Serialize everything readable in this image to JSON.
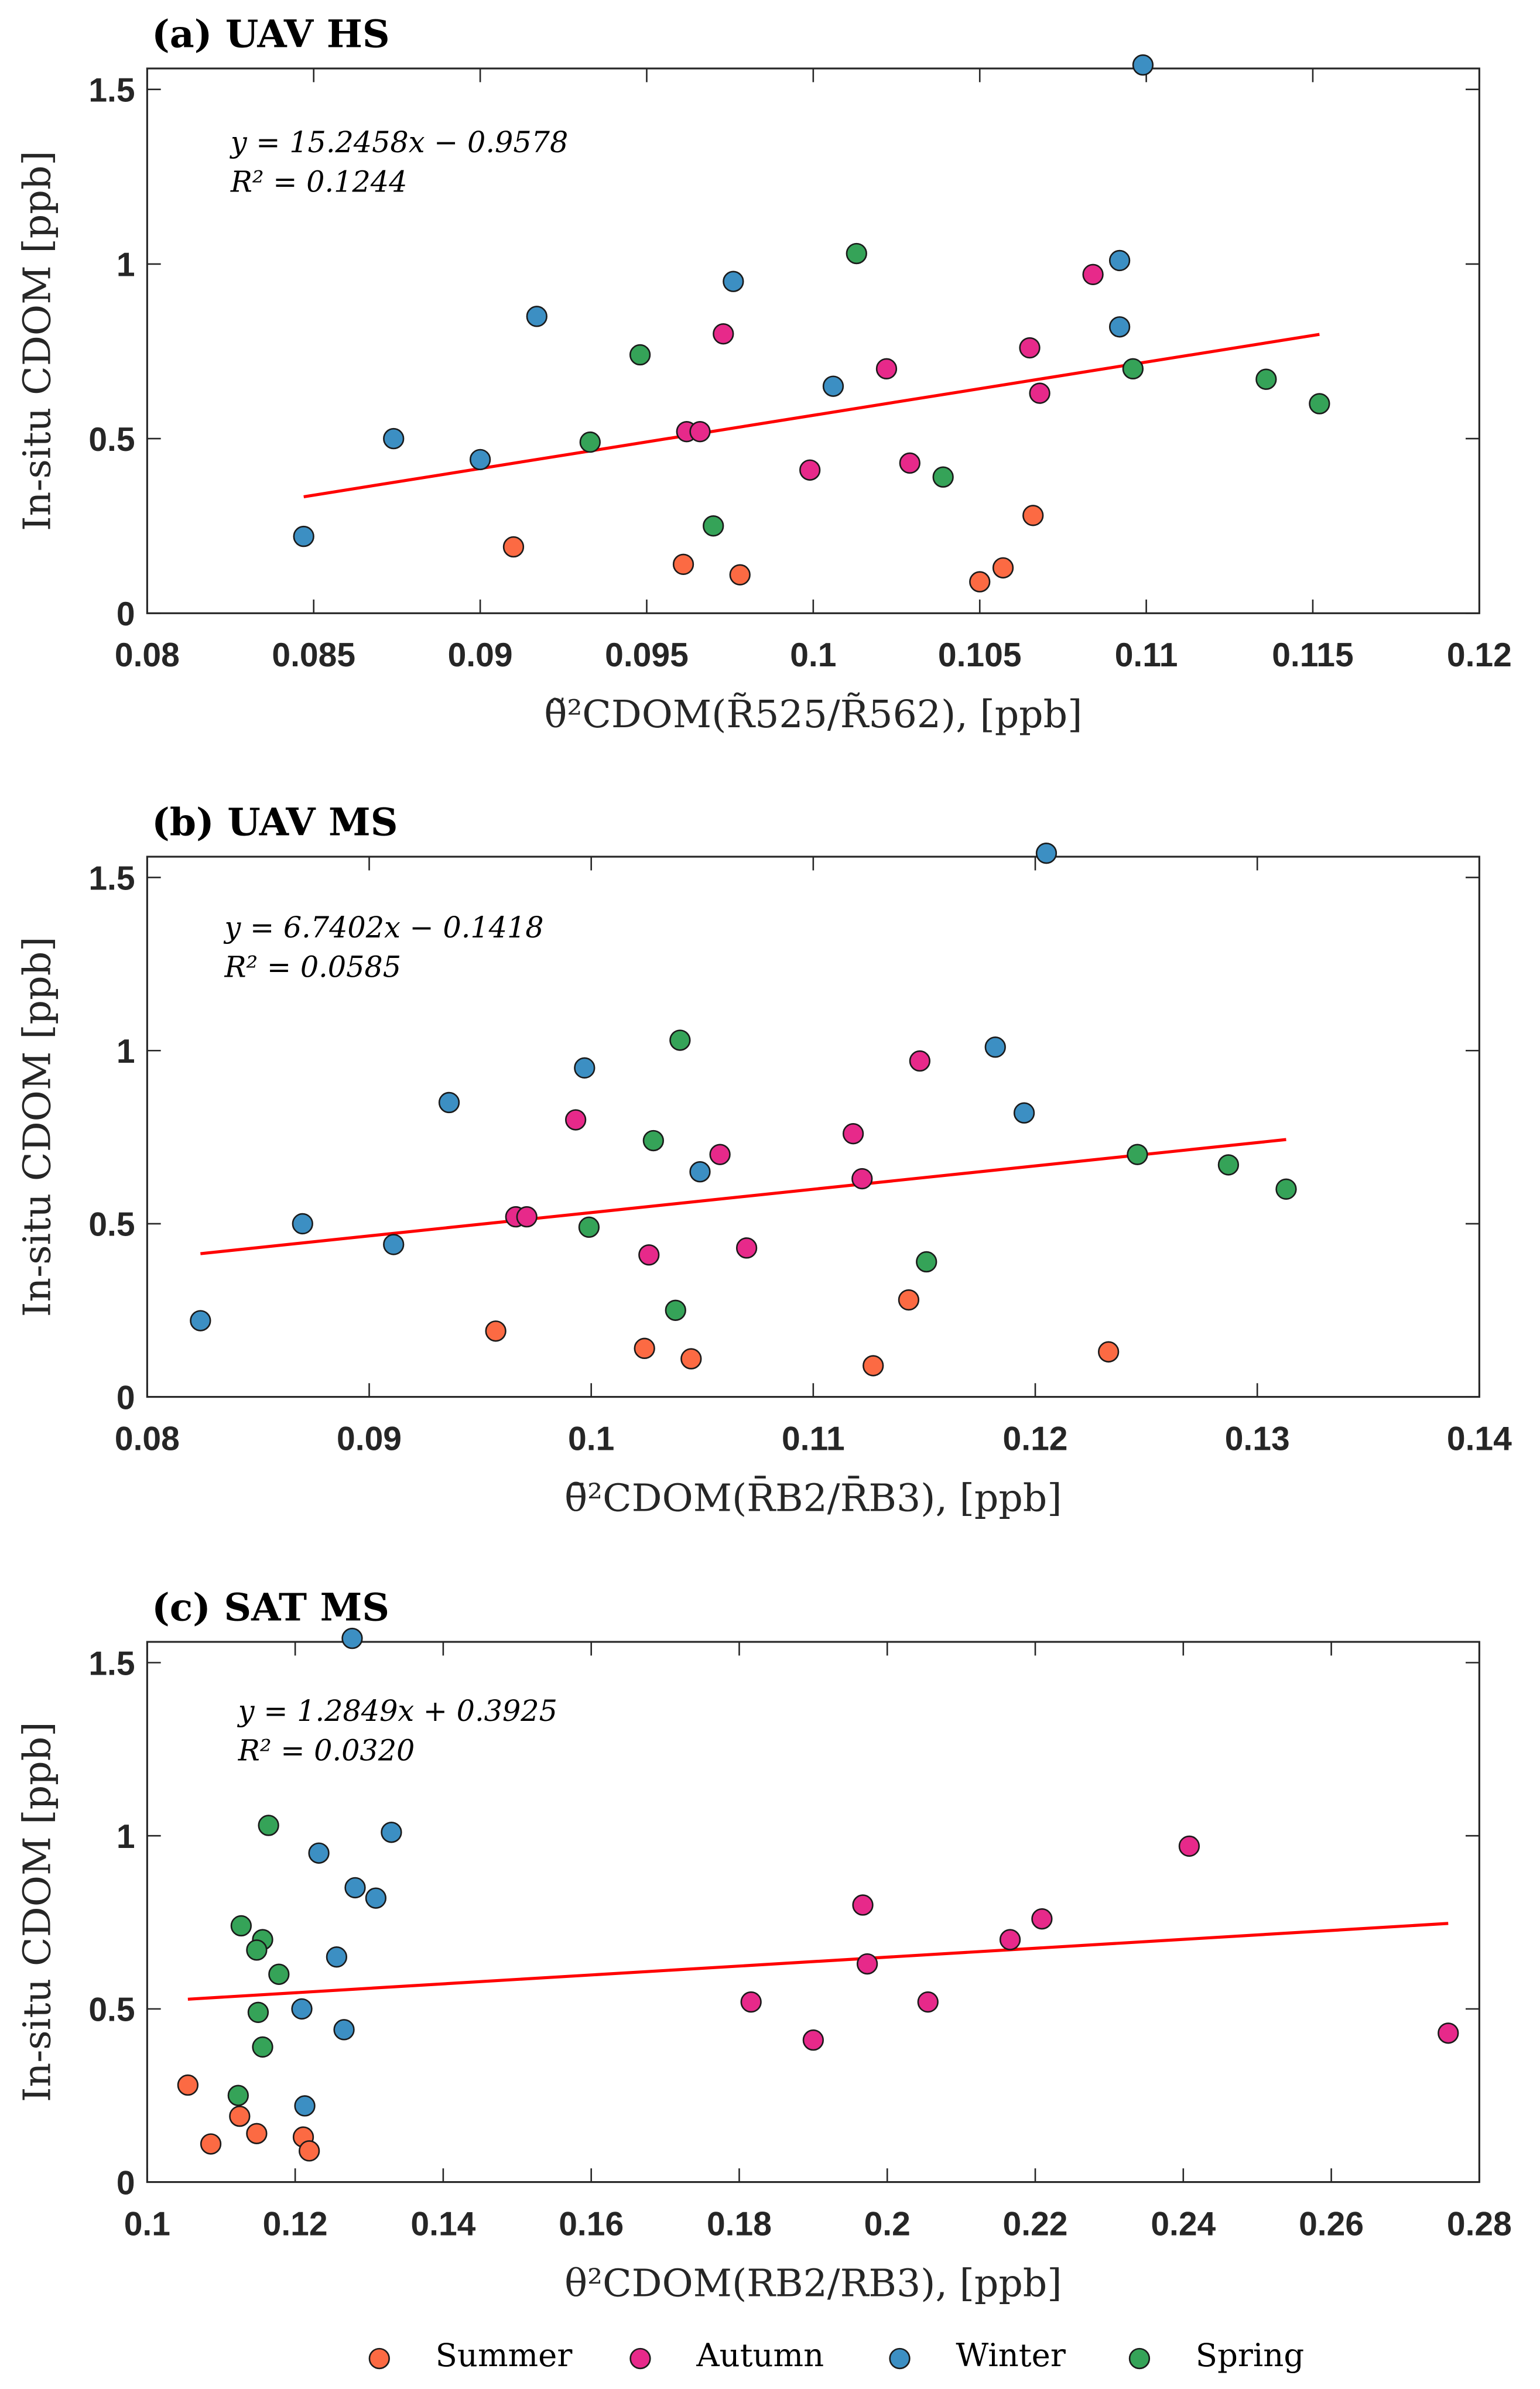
{
  "colors": {
    "Summer": "#fc6a43",
    "Autumn": "#e7298a",
    "Winter": "#3c8fc3",
    "Spring": "#35a358",
    "fit": "#ff0000"
  },
  "legend": [
    "Summer",
    "Autumn",
    "Winter",
    "Spring"
  ],
  "chart_data": [
    {
      "type": "scatter",
      "title": "(a)  UAV HS",
      "xlabel": "θ̃²CDOM(R̃525/R̃562), [ppb]",
      "ylabel": "In-situ CDOM [ppb]",
      "xlim": [
        0.08,
        0.12
      ],
      "ylim": [
        0,
        1.56
      ],
      "xticks": [
        0.08,
        0.085,
        0.09,
        0.095,
        0.1,
        0.105,
        0.11,
        0.115,
        0.12
      ],
      "xtick_labels": [
        "0.08",
        "0.085",
        "0.09",
        "0.095",
        "0.1",
        "0.105",
        "0.11",
        "0.115",
        "0.12"
      ],
      "yticks": [
        0,
        0.5,
        1,
        1.5
      ],
      "ytick_labels": [
        "0",
        "0.5",
        "1",
        "1.5"
      ],
      "equation": "y = 15.2458x − 0.9578",
      "r2": "R² = 0.1244",
      "fit": {
        "slope": 15.2458,
        "intercept": -0.9578,
        "xrange": [
          0.0847,
          0.1152
        ]
      },
      "series": [
        {
          "name": "Summer",
          "x": [
            0.091,
            0.0961,
            0.0978,
            0.105,
            0.1057,
            0.1066
          ],
          "y": [
            0.19,
            0.14,
            0.11,
            0.09,
            0.13,
            0.28
          ]
        },
        {
          "name": "Autumn",
          "x": [
            0.1084,
            0.0973,
            0.1022,
            0.1065,
            0.1068,
            0.0962,
            0.0966,
            0.0999,
            0.1029
          ],
          "y": [
            0.97,
            0.8,
            0.7,
            0.76,
            0.63,
            0.52,
            0.52,
            0.41,
            0.43
          ]
        },
        {
          "name": "Winter",
          "x": [
            0.1099,
            0.0847,
            0.0874,
            0.09,
            0.0917,
            0.0976,
            0.1006,
            0.1092,
            0.1092
          ],
          "y": [
            1.57,
            0.22,
            0.5,
            0.44,
            0.85,
            0.95,
            0.65,
            1.01,
            0.82
          ]
        },
        {
          "name": "Spring",
          "x": [
            0.1013,
            0.0948,
            0.0933,
            0.097,
            0.1039,
            0.1096,
            0.1136,
            0.1152
          ],
          "y": [
            1.03,
            0.74,
            0.49,
            0.25,
            0.39,
            0.7,
            0.67,
            0.6
          ]
        }
      ]
    },
    {
      "type": "scatter",
      "title": "(b)  UAV MS",
      "xlabel": "θ̄²CDOM(R̄B2/R̄B3), [ppb]",
      "ylabel": "In-situ CDOM [ppb]",
      "xlim": [
        0.08,
        0.14
      ],
      "ylim": [
        0,
        1.56
      ],
      "xticks": [
        0.08,
        0.09,
        0.1,
        0.11,
        0.12,
        0.13,
        0.14
      ],
      "xtick_labels": [
        "0.08",
        "0.09",
        "0.1",
        "0.11",
        "0.12",
        "0.13",
        "0.14"
      ],
      "yticks": [
        0,
        0.5,
        1,
        1.5
      ],
      "ytick_labels": [
        "0",
        "0.5",
        "1",
        "1.5"
      ],
      "equation": "y = 6.7402x − 0.1418",
      "r2": "R² = 0.0585",
      "fit": {
        "slope": 6.7402,
        "intercept": -0.1418,
        "xrange": [
          0.0824,
          0.1313
        ]
      },
      "series": [
        {
          "name": "Summer",
          "x": [
            0.0957,
            0.1024,
            0.1045,
            0.1127,
            0.1233,
            0.1143
          ],
          "y": [
            0.19,
            0.14,
            0.11,
            0.09,
            0.13,
            0.28
          ]
        },
        {
          "name": "Autumn",
          "x": [
            0.1148,
            0.0993,
            0.1058,
            0.1118,
            0.1122,
            0.0966,
            0.0971,
            0.1026,
            0.107
          ],
          "y": [
            0.97,
            0.8,
            0.7,
            0.76,
            0.63,
            0.52,
            0.52,
            0.41,
            0.43
          ]
        },
        {
          "name": "Winter",
          "x": [
            0.1205,
            0.0824,
            0.087,
            0.0911,
            0.0936,
            0.0997,
            0.1049,
            0.1182,
            0.1195
          ],
          "y": [
            1.57,
            0.22,
            0.5,
            0.44,
            0.85,
            0.95,
            0.65,
            1.01,
            0.82
          ]
        },
        {
          "name": "Spring",
          "x": [
            0.104,
            0.1028,
            0.0999,
            0.1038,
            0.1151,
            0.1246,
            0.1287,
            0.1313
          ],
          "y": [
            1.03,
            0.74,
            0.49,
            0.25,
            0.39,
            0.7,
            0.67,
            0.6
          ]
        }
      ]
    },
    {
      "type": "scatter",
      "title": "(c)  SAT MS",
      "xlabel": "θ²CDOM(RB2/RB3), [ppb]",
      "ylabel": "In-situ CDOM [ppb]",
      "xlim": [
        0.1,
        0.28
      ],
      "ylim": [
        0,
        1.56
      ],
      "xticks": [
        0.1,
        0.12,
        0.14,
        0.16,
        0.18,
        0.2,
        0.22,
        0.24,
        0.26,
        0.28
      ],
      "xtick_labels": [
        "0.1",
        "0.12",
        "0.14",
        "0.16",
        "0.18",
        "0.2",
        "0.22",
        "0.24",
        "0.26",
        "0.28"
      ],
      "yticks": [
        0,
        0.5,
        1,
        1.5
      ],
      "ytick_labels": [
        "0",
        "0.5",
        "1",
        "1.5"
      ],
      "equation": "y = 1.2849x + 0.3925",
      "r2": "R² = 0.0320",
      "fit": {
        "slope": 1.2849,
        "intercept": 0.3925,
        "xrange": [
          0.1055,
          0.2758
        ]
      },
      "series": [
        {
          "name": "Summer",
          "x": [
            0.1055,
            0.1125,
            0.1086,
            0.1148,
            0.1211,
            0.1219
          ],
          "y": [
            0.28,
            0.19,
            0.11,
            0.14,
            0.13,
            0.09
          ]
        },
        {
          "name": "Autumn",
          "x": [
            0.2408,
            0.1967,
            0.2166,
            0.2209,
            0.1973,
            0.1816,
            0.2055,
            0.19,
            0.2758
          ],
          "y": [
            0.97,
            0.8,
            0.7,
            0.76,
            0.63,
            0.52,
            0.52,
            0.41,
            0.43
          ]
        },
        {
          "name": "Winter",
          "x": [
            0.1277,
            0.1213,
            0.1209,
            0.1266,
            0.1256,
            0.1281,
            0.1232,
            0.133,
            0.1309
          ],
          "y": [
            1.57,
            0.22,
            0.5,
            0.44,
            0.65,
            0.85,
            0.95,
            1.01,
            0.82
          ]
        },
        {
          "name": "Spring",
          "x": [
            0.1164,
            0.1127,
            0.1156,
            0.1148,
            0.1178,
            0.115,
            0.1156,
            0.1123
          ],
          "y": [
            1.03,
            0.74,
            0.7,
            0.67,
            0.6,
            0.49,
            0.39,
            0.25
          ]
        }
      ]
    }
  ]
}
